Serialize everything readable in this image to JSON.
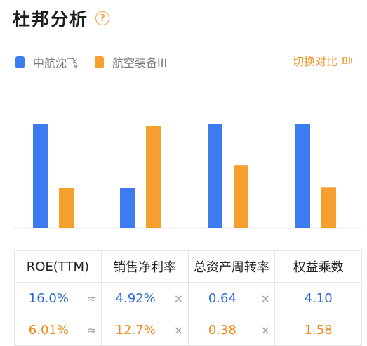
{
  "header": {
    "title": "杜邦分析",
    "help_glyph": "?"
  },
  "legend": {
    "items": [
      {
        "label": "中航沈飞",
        "color": "#3d7bf0"
      },
      {
        "label": "航空装备III",
        "color": "#f5a02e"
      }
    ]
  },
  "switch": {
    "label": "切换对比"
  },
  "chart_data": {
    "type": "bar",
    "categories": [
      "ROE(TTM)",
      "销售净利率",
      "总资产周转率",
      "权益乘数"
    ],
    "series": [
      {
        "name": "中航沈飞",
        "values": [
          1.0,
          0.38,
          1.0,
          1.0
        ]
      },
      {
        "name": "航空装备III",
        "values": [
          0.38,
          0.98,
          0.6,
          0.39
        ]
      }
    ],
    "ylim": [
      0,
      1
    ],
    "grid": false
  },
  "table": {
    "headers": [
      "ROE(TTM)",
      "销售净利率",
      "总资产周转率",
      "权益乘数"
    ],
    "ops": [
      "≈",
      "×",
      "×"
    ],
    "rows": [
      {
        "values": [
          "16.0%",
          "4.92%",
          "0.64",
          "4.10"
        ],
        "color": "#2d6ad9"
      },
      {
        "values": [
          "6.01%",
          "12.7%",
          "0.38",
          "1.58"
        ],
        "color": "#ee8a1d"
      }
    ]
  }
}
